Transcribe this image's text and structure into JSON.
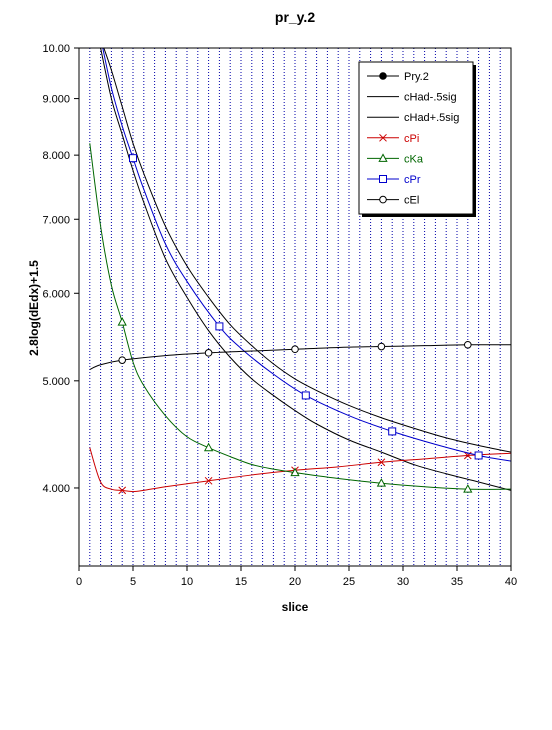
{
  "chart_data": {
    "type": "line",
    "title": "pr_y.2",
    "xlabel": "slice",
    "ylabel": "2.8log(dEdx)+1.5",
    "xlim": [
      0,
      40
    ],
    "ylim": [
      3.4,
      10.0
    ],
    "y_scale": "log",
    "grid": "vertical",
    "legend_position": "top-right",
    "x_ticks": [
      "0",
      "5",
      "10",
      "15",
      "20",
      "25",
      "30",
      "35",
      "40"
    ],
    "y_ticks": [
      {
        "value": 4.0,
        "label": "4.000"
      },
      {
        "value": 5.0,
        "label": "5.000"
      },
      {
        "value": 6.0,
        "label": "6.000"
      },
      {
        "value": 7.0,
        "label": "7.000"
      },
      {
        "value": 8.0,
        "label": "8.000"
      },
      {
        "value": 9.0,
        "label": "9.000"
      },
      {
        "value": 10.0,
        "label": "10.00"
      }
    ],
    "series": [
      {
        "name": "Pry.2",
        "color": "#000000",
        "marker": "filled-circle",
        "x": [],
        "y": []
      },
      {
        "name": "cHad-.5sig",
        "color": "#000000",
        "marker": "none",
        "x": [
          2,
          3,
          4,
          5,
          6,
          8,
          10,
          12,
          14,
          16,
          18,
          20,
          22,
          25,
          28,
          31,
          34,
          37,
          40
        ],
        "y": [
          10.0,
          9.0,
          8.35,
          7.75,
          7.25,
          6.45,
          5.95,
          5.55,
          5.25,
          5.02,
          4.85,
          4.7,
          4.57,
          4.42,
          4.31,
          4.2,
          4.12,
          4.05,
          3.98
        ]
      },
      {
        "name": "cHad+.5sig",
        "color": "#000000",
        "marker": "none",
        "x": [
          2.3,
          3,
          4,
          5,
          6,
          8,
          10,
          12,
          14,
          16,
          18,
          20,
          22,
          25,
          28,
          31,
          34,
          37,
          40
        ],
        "y": [
          10.0,
          9.55,
          8.85,
          8.2,
          7.7,
          6.9,
          6.35,
          5.95,
          5.62,
          5.38,
          5.18,
          5.02,
          4.9,
          4.75,
          4.63,
          4.53,
          4.44,
          4.37,
          4.31
        ]
      },
      {
        "name": "cPi",
        "color": "#cc0000",
        "marker": "x",
        "x": [
          1,
          2,
          3,
          4,
          5,
          6,
          8,
          12,
          16,
          20,
          24,
          28,
          32,
          36,
          40
        ],
        "y": [
          4.35,
          4.05,
          3.99,
          3.98,
          3.97,
          3.98,
          4.01,
          4.06,
          4.11,
          4.15,
          4.18,
          4.22,
          4.25,
          4.28,
          4.3
        ],
        "markers_at": [
          4,
          12,
          20,
          28,
          36
        ]
      },
      {
        "name": "cKa",
        "color": "#006600",
        "marker": "triangle",
        "x": [
          1,
          2,
          3,
          4,
          5,
          6,
          8,
          10,
          12,
          14,
          16,
          18,
          20,
          24,
          28,
          32,
          36,
          40
        ],
        "y": [
          8.2,
          6.9,
          6.1,
          5.65,
          5.2,
          4.95,
          4.65,
          4.45,
          4.35,
          4.27,
          4.2,
          4.16,
          4.13,
          4.08,
          4.04,
          4.01,
          3.99,
          3.99
        ],
        "markers_at": [
          4,
          12,
          20,
          28,
          36
        ]
      },
      {
        "name": "cPr",
        "color": "#0000cc",
        "marker": "square",
        "x": [
          2.2,
          3,
          4,
          5,
          6,
          8,
          10,
          13,
          15,
          18,
          21,
          25,
          29,
          33,
          37,
          40
        ],
        "y": [
          10.0,
          9.2,
          8.5,
          7.95,
          7.45,
          6.65,
          6.15,
          5.6,
          5.35,
          5.07,
          4.85,
          4.65,
          4.5,
          4.38,
          4.28,
          4.23
        ],
        "markers_at": [
          5,
          13,
          21,
          29,
          37
        ]
      },
      {
        "name": "cEl",
        "color": "#000000",
        "marker": "open-circle",
        "x": [
          1,
          2,
          4,
          8,
          12,
          16,
          20,
          24,
          28,
          32,
          36,
          40
        ],
        "y": [
          5.12,
          5.17,
          5.22,
          5.27,
          5.3,
          5.32,
          5.34,
          5.36,
          5.37,
          5.38,
          5.39,
          5.39
        ],
        "markers_at": [
          4,
          12,
          20,
          28,
          36
        ]
      }
    ]
  }
}
